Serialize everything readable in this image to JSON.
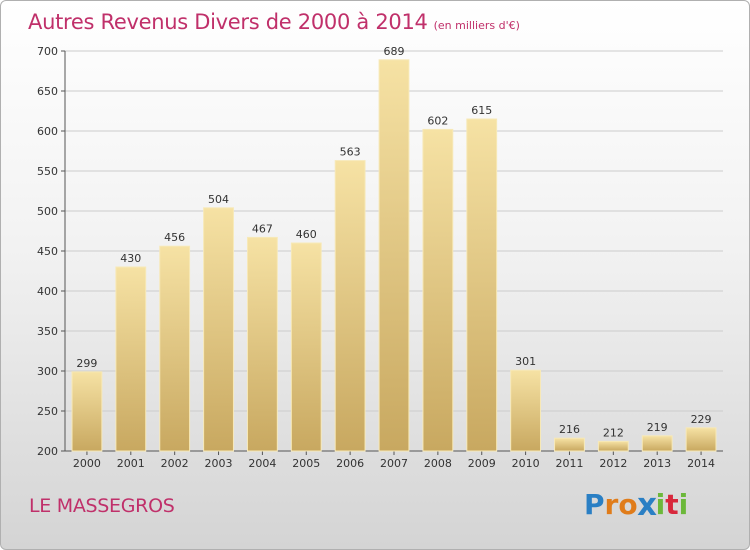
{
  "title": "Autres Revenus Divers de 2000 à 2014",
  "unit": "(en milliers d'€)",
  "place": "LE MASSEGROS",
  "logo": {
    "letters": [
      "P",
      "r",
      "o",
      "x",
      "i",
      "t",
      "i"
    ],
    "colors": [
      "#2a7fc4",
      "#e07c1a",
      "#e07c1a",
      "#2a7fc4",
      "#6cb83a",
      "#d8283c",
      "#6cb83a"
    ]
  },
  "colors": {
    "title": "#c0306a",
    "bar_light": "#f6e2a4",
    "bar_dark": "#c8a860",
    "grid": "#cccccc"
  },
  "chart_data": {
    "type": "bar",
    "categories": [
      "2000",
      "2001",
      "2002",
      "2003",
      "2004",
      "2005",
      "2006",
      "2007",
      "2008",
      "2009",
      "2010",
      "2011",
      "2012",
      "2013",
      "2014"
    ],
    "values": [
      299,
      430,
      456,
      504,
      467,
      460,
      563,
      689,
      602,
      615,
      301,
      216,
      212,
      219,
      229
    ],
    "ylim": [
      200,
      700
    ],
    "yticks": [
      200,
      250,
      300,
      350,
      400,
      450,
      500,
      550,
      600,
      650,
      700
    ],
    "grid": true,
    "xlabel": "",
    "ylabel": ""
  }
}
